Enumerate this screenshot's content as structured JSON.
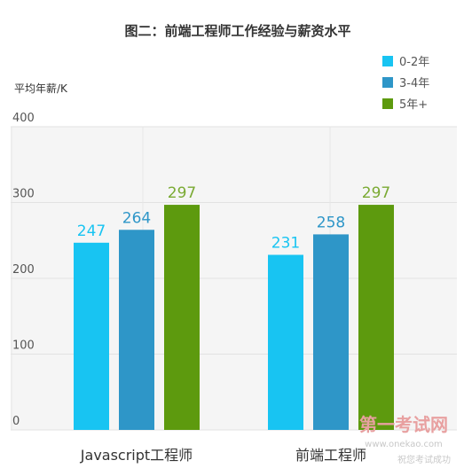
{
  "chart_data": {
    "type": "bar",
    "title": "图二：前端工程师工作经验与薪资水平",
    "ylabel": "平均年薪/K",
    "xlabel": "",
    "ylim": [
      0,
      400
    ],
    "yticks": [
      0,
      100,
      200,
      300,
      400
    ],
    "categories": [
      "Javascript工程师",
      "前端工程师"
    ],
    "series": [
      {
        "name": "0-2年",
        "values": [
          247,
          231
        ],
        "color": "#18c4f2"
      },
      {
        "name": "3-4年",
        "values": [
          264,
          258
        ],
        "color": "#2e96c8"
      },
      {
        "name": "5年+",
        "values": [
          297,
          297
        ],
        "color": "#5d9a0e"
      }
    ],
    "legend": "top-right",
    "grid": true,
    "label_color": "#7aaa33"
  },
  "watermark": {
    "main": "第一考试网",
    "url": "www.onekao.com",
    "slogan": "祝您考试成功"
  }
}
